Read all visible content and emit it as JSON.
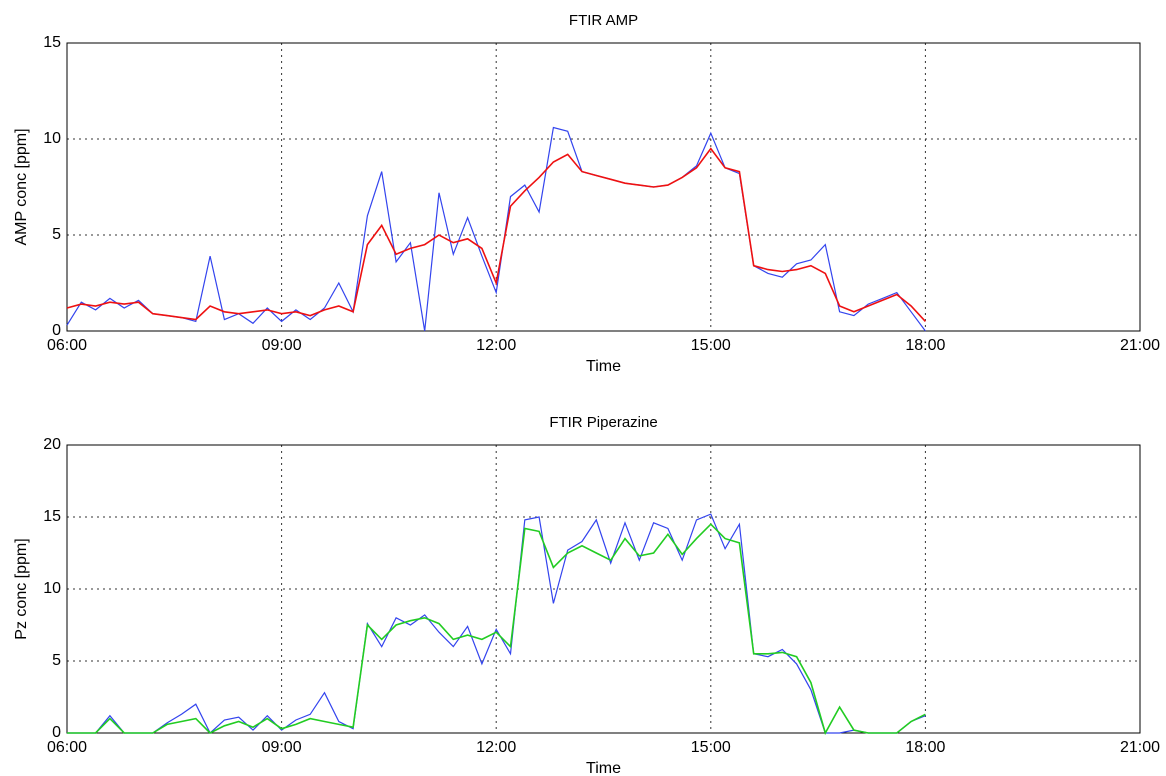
{
  "chart_data": [
    {
      "type": "line",
      "title": "FTIR AMP",
      "xlabel": "Time",
      "ylabel": "AMP conc [ppm]",
      "x": [
        6.0,
        6.2,
        6.4,
        6.6,
        6.8,
        7.0,
        7.2,
        7.4,
        7.6,
        7.8,
        8.0,
        8.2,
        8.4,
        8.6,
        8.8,
        9.0,
        9.2,
        9.4,
        9.6,
        9.8,
        10.0,
        10.2,
        10.4,
        10.6,
        10.8,
        11.0,
        11.2,
        11.4,
        11.6,
        11.8,
        12.0,
        12.2,
        12.4,
        12.6,
        12.8,
        13.0,
        13.2,
        13.4,
        13.6,
        13.8,
        14.0,
        14.2,
        14.4,
        14.6,
        14.8,
        15.0,
        15.2,
        15.4,
        15.6,
        15.8,
        16.0,
        16.2,
        16.4,
        16.6,
        16.8,
        17.0,
        17.2,
        17.4,
        17.6,
        17.8,
        18.0
      ],
      "series": [
        {
          "color": "#3344ee",
          "values": [
            0.3,
            1.5,
            1.1,
            1.7,
            1.2,
            1.6,
            0.9,
            0.8,
            0.7,
            0.5,
            3.9,
            0.6,
            0.9,
            0.4,
            1.2,
            0.5,
            1.1,
            0.6,
            1.2,
            2.5,
            1.0,
            6.0,
            8.3,
            3.6,
            4.6,
            0.0,
            7.2,
            4.0,
            5.9,
            3.9,
            2.0,
            7.0,
            7.6,
            6.2,
            10.6,
            10.4,
            8.3,
            8.1,
            7.9,
            7.7,
            7.6,
            7.5,
            7.6,
            8.0,
            8.6,
            10.3,
            8.5,
            8.2,
            3.4,
            3.0,
            2.8,
            3.5,
            3.7,
            4.5,
            1.0,
            0.8,
            1.4,
            1.7,
            2.0,
            1.0,
            0.0
          ]
        },
        {
          "color": "#ee1111",
          "values": [
            1.2,
            1.4,
            1.3,
            1.5,
            1.4,
            1.5,
            0.9,
            0.8,
            0.7,
            0.6,
            1.3,
            1.0,
            0.9,
            1.0,
            1.1,
            0.9,
            1.0,
            0.8,
            1.1,
            1.3,
            1.0,
            4.5,
            5.5,
            4.0,
            4.3,
            4.5,
            5.0,
            4.6,
            4.8,
            4.3,
            2.5,
            6.5,
            7.3,
            8.0,
            8.8,
            9.2,
            8.3,
            8.1,
            7.9,
            7.7,
            7.6,
            7.5,
            7.6,
            8.0,
            8.5,
            9.5,
            8.5,
            8.3,
            3.4,
            3.2,
            3.1,
            3.2,
            3.4,
            3.0,
            1.3,
            1.0,
            1.3,
            1.6,
            1.9,
            1.3,
            0.5
          ]
        }
      ],
      "xlim": [
        6,
        21
      ],
      "xticks": [
        {
          "value": 6,
          "label": "06:00"
        },
        {
          "value": 9,
          "label": "09:00"
        },
        {
          "value": 12,
          "label": "12:00"
        },
        {
          "value": 15,
          "label": "15:00"
        },
        {
          "value": 18,
          "label": "18:00"
        },
        {
          "value": 21,
          "label": "21:00"
        }
      ],
      "ylim": [
        0,
        15
      ],
      "yticks": [
        0,
        5,
        10,
        15
      ],
      "grid": true
    },
    {
      "type": "line",
      "title": "FTIR Piperazine",
      "xlabel": "Time",
      "ylabel": "Pz conc [ppm]",
      "x": [
        6.0,
        6.2,
        6.4,
        6.6,
        6.8,
        7.0,
        7.2,
        7.4,
        7.6,
        7.8,
        8.0,
        8.2,
        8.4,
        8.6,
        8.8,
        9.0,
        9.2,
        9.4,
        9.6,
        9.8,
        10.0,
        10.2,
        10.4,
        10.6,
        10.8,
        11.0,
        11.2,
        11.4,
        11.6,
        11.8,
        12.0,
        12.2,
        12.4,
        12.6,
        12.8,
        13.0,
        13.2,
        13.4,
        13.6,
        13.8,
        14.0,
        14.2,
        14.4,
        14.6,
        14.8,
        15.0,
        15.2,
        15.4,
        15.6,
        15.8,
        16.0,
        16.2,
        16.4,
        16.6,
        16.8,
        17.0,
        17.2,
        17.4,
        17.6,
        17.8,
        18.0
      ],
      "series": [
        {
          "color": "#3344ee",
          "values": [
            0,
            0,
            0,
            1.2,
            0,
            0,
            0,
            0.7,
            1.3,
            2.0,
            0,
            0.9,
            1.1,
            0.2,
            1.2,
            0.2,
            0.9,
            1.3,
            2.8,
            0.8,
            0.3,
            7.6,
            6.0,
            8.0,
            7.5,
            8.2,
            7.0,
            6.0,
            7.4,
            4.8,
            7.2,
            5.5,
            14.8,
            15.0,
            9.0,
            12.7,
            13.3,
            14.8,
            11.8,
            14.6,
            12.0,
            14.6,
            14.2,
            12.0,
            14.8,
            15.2,
            12.8,
            14.5,
            5.5,
            5.3,
            5.8,
            4.8,
            3.0,
            0,
            0,
            0.2,
            0,
            0,
            0,
            0.8,
            1.2
          ]
        },
        {
          "color": "#22cc22",
          "values": [
            0,
            0,
            0,
            1.0,
            0,
            0,
            0,
            0.6,
            0.8,
            1.0,
            0,
            0.5,
            0.8,
            0.4,
            1.0,
            0.3,
            0.6,
            1.0,
            0.8,
            0.6,
            0.4,
            7.5,
            6.5,
            7.5,
            7.8,
            8.0,
            7.6,
            6.5,
            6.8,
            6.5,
            7.0,
            6.0,
            14.2,
            14.0,
            11.5,
            12.5,
            13.0,
            12.5,
            12.0,
            13.5,
            12.3,
            12.5,
            13.8,
            12.4,
            13.5,
            14.5,
            13.5,
            13.2,
            5.5,
            5.5,
            5.6,
            5.3,
            3.5,
            0,
            1.8,
            0.2,
            0,
            0,
            0,
            0.8,
            1.3
          ]
        }
      ],
      "xlim": [
        6,
        21
      ],
      "xticks": [
        {
          "value": 6,
          "label": "06:00"
        },
        {
          "value": 9,
          "label": "09:00"
        },
        {
          "value": 12,
          "label": "12:00"
        },
        {
          "value": 15,
          "label": "15:00"
        },
        {
          "value": 18,
          "label": "18:00"
        },
        {
          "value": 21,
          "label": "21:00"
        }
      ],
      "ylim": [
        0,
        20
      ],
      "yticks": [
        0,
        5,
        10,
        15,
        20
      ],
      "grid": true
    }
  ]
}
